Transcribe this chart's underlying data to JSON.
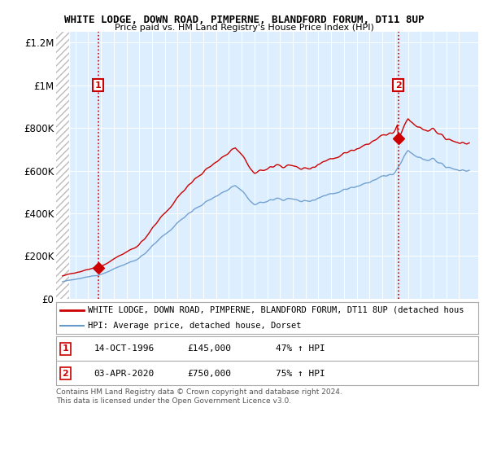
{
  "title1": "WHITE LODGE, DOWN ROAD, PIMPERNE, BLANDFORD FORUM, DT11 8UP",
  "title2": "Price paid vs. HM Land Registry's House Price Index (HPI)",
  "legend_line1": "WHITE LODGE, DOWN ROAD, PIMPERNE, BLANDFORD FORUM, DT11 8UP (detached hous",
  "legend_line2": "HPI: Average price, detached house, Dorset",
  "footer1": "Contains HM Land Registry data © Crown copyright and database right 2024.",
  "footer2": "This data is licensed under the Open Government Licence v3.0.",
  "point1_label": "1",
  "point1_date": "14-OCT-1996",
  "point1_price": "£145,000",
  "point1_hpi": "47% ↑ HPI",
  "point1_year": 1996.79,
  "point1_value": 145000,
  "point2_label": "2",
  "point2_date": "03-APR-2020",
  "point2_price": "£750,000",
  "point2_hpi": "75% ↑ HPI",
  "point2_year": 2020.25,
  "point2_value": 750000,
  "red_color": "#cc0000",
  "blue_color": "#6699cc",
  "background_color": "#ddeeff",
  "ylim": [
    0,
    1250000
  ],
  "xlim_left": 1993.5,
  "xlim_right": 2026.5,
  "hatch_end_year": 1994.5
}
